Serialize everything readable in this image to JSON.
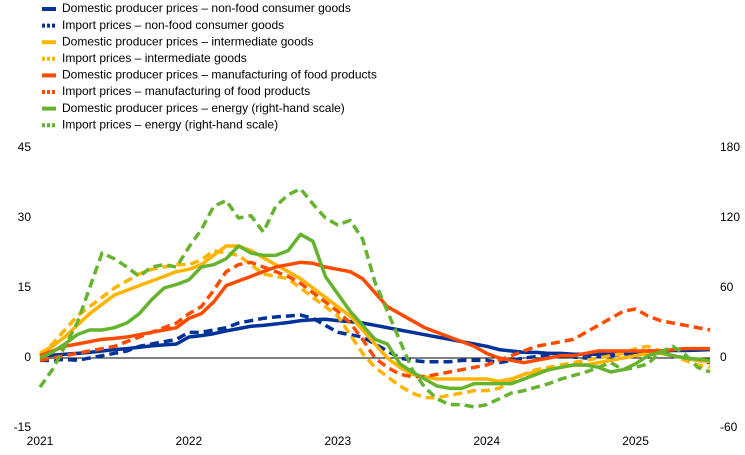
{
  "chart_data": {
    "type": "line",
    "categories": [
      "2021",
      null,
      null,
      null,
      null,
      null,
      null,
      null,
      null,
      null,
      null,
      null,
      "2022",
      null,
      null,
      null,
      null,
      null,
      null,
      null,
      null,
      null,
      null,
      null,
      "2023",
      null,
      null,
      null,
      null,
      null,
      null,
      null,
      null,
      null,
      null,
      null,
      "2024",
      null,
      null,
      null,
      null,
      null,
      null,
      null,
      null,
      null,
      null,
      null,
      "2025",
      null,
      null,
      null,
      null,
      null,
      null
    ],
    "ylim": [
      -15,
      45
    ],
    "yticks": [
      -15,
      0,
      15,
      30,
      45
    ],
    "y2lim": [
      -60,
      180
    ],
    "y2ticks": [
      -60,
      0,
      60,
      120,
      180
    ],
    "series": [
      {
        "name": "Domestic producer prices – non-food consumer goods",
        "color": "#003299",
        "style": "solid",
        "values": [
          0.5,
          0.6,
          0.8,
          1.0,
          1.2,
          1.5,
          1.8,
          2.0,
          2.3,
          2.6,
          2.8,
          3.0,
          4.5,
          4.8,
          5.2,
          5.8,
          6.3,
          6.8,
          7.0,
          7.3,
          7.6,
          8.0,
          8.2,
          8.3,
          8.0,
          7.8,
          7.5,
          7.0,
          6.5,
          6.0,
          5.5,
          5.0,
          4.5,
          4.0,
          3.5,
          3.0,
          2.5,
          1.8,
          1.5,
          1.2,
          1.2,
          1.0,
          1.0,
          0.8,
          0.8,
          0.8,
          0.9,
          1.0,
          1.2,
          1.5,
          1.5,
          1.6,
          1.6,
          1.7,
          1.8
        ]
      },
      {
        "name": "Import prices – non-food consumer goods",
        "color": "#003299",
        "style": "dashed",
        "values": [
          -0.5,
          -0.5,
          -0.3,
          -0.5,
          0,
          0.5,
          1.0,
          1.5,
          2.5,
          3.0,
          3.5,
          4.0,
          5.5,
          5.5,
          6.0,
          6.5,
          7.5,
          8.0,
          8.5,
          8.8,
          9.0,
          9.2,
          8.5,
          7.0,
          5.5,
          5.0,
          4.5,
          3.0,
          1.5,
          0,
          -0.5,
          -0.8,
          -0.8,
          -0.8,
          -0.5,
          -0.5,
          -0.5,
          -1.0,
          -0.5,
          0,
          0.3,
          0.5,
          0.5,
          0.2,
          0,
          0.3,
          0.5,
          0.8,
          1.0,
          1.5,
          1.0,
          0.5,
          0,
          -0.5,
          -1.0
        ]
      },
      {
        "name": "Domestic producer prices – intermediate goods",
        "color": "#ffb400",
        "style": "solid",
        "values": [
          1,
          2.5,
          4.5,
          7,
          9.5,
          11.5,
          13.5,
          14.5,
          15.5,
          16.5,
          17.5,
          18.5,
          19,
          20,
          22,
          24,
          24,
          23,
          21.5,
          20,
          18.5,
          17,
          15,
          13,
          11,
          9,
          6,
          3,
          0,
          -2,
          -3.5,
          -4,
          -4.5,
          -4.5,
          -4.5,
          -4.5,
          -4.5,
          -5,
          -4.5,
          -3.5,
          -3,
          -2.5,
          -2,
          -1.5,
          -1.5,
          -1,
          -0.5,
          0,
          0.5,
          1,
          1,
          0.5,
          0,
          -0.5,
          -0.8
        ]
      },
      {
        "name": "Import prices – intermediate goods",
        "color": "#ffb400",
        "style": "dashed",
        "values": [
          0.5,
          3,
          6,
          9,
          11,
          13,
          15,
          16.5,
          18,
          19,
          19.5,
          20,
          20,
          21,
          23,
          22.5,
          22,
          20,
          18,
          17.5,
          17,
          15,
          13,
          11,
          9,
          5,
          1,
          -2,
          -4,
          -6,
          -7.5,
          -8.5,
          -8.5,
          -8,
          -7.5,
          -7,
          -7,
          -6.5,
          -5,
          -3.5,
          -2.5,
          -2,
          -1.5,
          -1,
          -0.5,
          0,
          0.5,
          1,
          2,
          2.5,
          1.5,
          0.5,
          -0.5,
          -1.5,
          -2
        ]
      },
      {
        "name": "Domestic producer prices – manufacturing of food products",
        "color": "#ff4b00",
        "style": "solid",
        "values": [
          0.5,
          1.5,
          2.5,
          3,
          3.5,
          4,
          4.2,
          4.5,
          5,
          5.5,
          6,
          6.5,
          8.5,
          9.5,
          12,
          15.5,
          16.5,
          17.5,
          18.5,
          19.5,
          20,
          20.5,
          20.3,
          19.5,
          19,
          18.5,
          17,
          14,
          11,
          9.5,
          8,
          6.5,
          5.5,
          4.5,
          3.5,
          2.5,
          1,
          0,
          -0.5,
          -1,
          -0.5,
          0,
          0.5,
          0.5,
          1,
          1.5,
          1.5,
          1.5,
          1.5,
          1.5,
          1.5,
          1.8,
          2,
          2,
          2
        ]
      },
      {
        "name": "Import prices – manufacturing of food products",
        "color": "#ff4b00",
        "style": "dashed",
        "values": [
          -0.5,
          0,
          0.5,
          1,
          1.5,
          2,
          2.5,
          3.5,
          4.5,
          5.5,
          6.5,
          7.5,
          9.5,
          11,
          14.5,
          18.5,
          20,
          20.5,
          19.5,
          18.5,
          17.5,
          16,
          14,
          12,
          10,
          7.5,
          4,
          0,
          -2,
          -3.5,
          -4,
          -4,
          -3.5,
          -3,
          -2.5,
          -2,
          -1.5,
          -0.5,
          0.5,
          1.5,
          2.5,
          3,
          3.5,
          4,
          5.5,
          7,
          8.5,
          10,
          10.5,
          9,
          8,
          7.5,
          7,
          6.5,
          6
        ]
      },
      {
        "name": "Domestic producer prices – energy (right-hand scale)",
        "color": "#65b32e",
        "style": "solid",
        "axis": "y2",
        "values": [
          0,
          5,
          12,
          20,
          24,
          24,
          26,
          30,
          38,
          50,
          60,
          63,
          67,
          78,
          80,
          85,
          96,
          90,
          88,
          88,
          92,
          106,
          100,
          70,
          55,
          40,
          28,
          16,
          12,
          -5,
          -12,
          -18,
          -24,
          -26,
          -26,
          -22,
          -22,
          -22,
          -22,
          -18,
          -14,
          -10,
          -8,
          -6,
          -6,
          -8,
          -12,
          -10,
          -5,
          2,
          5,
          2,
          0,
          -1,
          -2
        ]
      },
      {
        "name": "Import prices – energy (right-hand scale)",
        "color": "#65b32e",
        "style": "dashed",
        "axis": "y2",
        "values": [
          -25,
          -10,
          10,
          30,
          60,
          90,
          85,
          78,
          70,
          78,
          80,
          78,
          95,
          110,
          130,
          135,
          120,
          122,
          108,
          130,
          140,
          145,
          132,
          120,
          114,
          118,
          102,
          65,
          40,
          15,
          -10,
          -25,
          -35,
          -40,
          -40,
          -42,
          -40,
          -35,
          -30,
          -28,
          -25,
          -22,
          -18,
          -15,
          -12,
          -8,
          -4,
          -10,
          -8,
          -5,
          5,
          10,
          3,
          -8,
          -12
        ]
      }
    ]
  }
}
